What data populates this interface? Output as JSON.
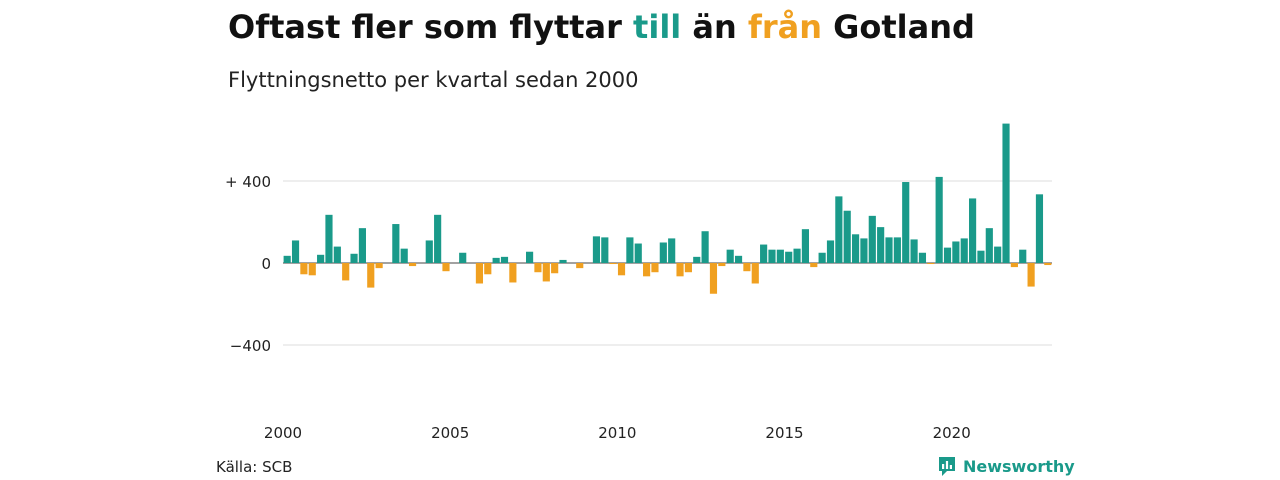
{
  "header": {
    "title_part1": "Oftast fler som flyttar ",
    "title_till": "till",
    "title_part2": " än ",
    "title_fran": "från",
    "title_part3": " Gotland",
    "subtitle": "Flyttningsnetto per kvartal sedan 2000"
  },
  "colors": {
    "positive": "#1a9a8a",
    "negative": "#f0a020",
    "text": "#111111",
    "grid": "#dddddd"
  },
  "footer": {
    "source": "Källa: SCB",
    "brand": "Newsworthy"
  },
  "chart_data": {
    "type": "bar",
    "title": "Oftast fler som flyttar till än från Gotland",
    "subtitle": "Flyttningsnetto per kvartal sedan 2000",
    "ylim": [
      -600,
      700
    ],
    "yticks": [
      -400,
      0,
      400
    ],
    "ytick_labels": [
      "−400",
      "0",
      "+ 400"
    ],
    "grid": true,
    "xticks": [
      2000,
      2005,
      2010,
      2015,
      2020
    ],
    "start_year": 2000,
    "values": [
      35,
      110,
      -55,
      -60,
      40,
      235,
      80,
      -85,
      45,
      170,
      -120,
      -25,
      0,
      190,
      70,
      -15,
      0,
      110,
      235,
      -40,
      0,
      50,
      0,
      -100,
      -55,
      25,
      30,
      -95,
      0,
      55,
      -45,
      -90,
      -50,
      15,
      0,
      -25,
      0,
      130,
      125,
      -5,
      -60,
      125,
      95,
      -65,
      -45,
      100,
      120,
      -65,
      -45,
      30,
      155,
      -150,
      -15,
      65,
      35,
      -40,
      -100,
      90,
      65,
      65,
      55,
      70,
      165,
      -20,
      50,
      110,
      325,
      255,
      140,
      120,
      230,
      175,
      125,
      125,
      395,
      115,
      50,
      -5,
      420,
      75,
      105,
      120,
      315,
      60,
      170,
      80,
      680,
      -20,
      65,
      -115,
      335,
      -10
    ]
  }
}
